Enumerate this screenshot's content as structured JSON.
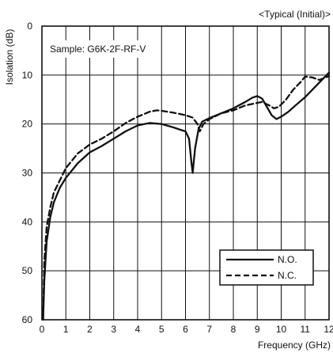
{
  "chart_data": {
    "type": "line",
    "title": "<Typical (Initial)>",
    "annotation": "Sample: G6K-2F-RF-V",
    "xlabel": "Frequency (GHz)",
    "ylabel": "Isolation (dB)",
    "xlim": [
      0,
      12
    ],
    "ylim": [
      0,
      60
    ],
    "y_inverted": true,
    "grid": true,
    "legend_position": "bottom-right",
    "xticks": [
      "0",
      "1",
      "2",
      "3",
      "4",
      "5",
      "6",
      "7",
      "8",
      "9",
      "10",
      "11",
      "12"
    ],
    "yticks": [
      "0",
      "10",
      "20",
      "30",
      "40",
      "50",
      "60"
    ],
    "series": [
      {
        "name": "N.O.",
        "style": "solid",
        "x": [
          0.05,
          0.1,
          0.2,
          0.35,
          0.5,
          0.75,
          1.0,
          1.5,
          2.0,
          2.5,
          3.0,
          3.5,
          4.0,
          4.5,
          5.0,
          5.5,
          5.8,
          6.0,
          6.15,
          6.25,
          6.3,
          6.4,
          6.55,
          6.7,
          7.0,
          7.5,
          8.0,
          8.5,
          8.8,
          9.0,
          9.2,
          9.4,
          9.6,
          9.8,
          10.0,
          10.3,
          10.6,
          11.0,
          11.5,
          12.0
        ],
        "y": [
          60,
          52,
          44,
          39,
          36,
          33,
          31,
          28,
          25.8,
          24.5,
          23,
          21.5,
          20.3,
          19.8,
          20,
          20.7,
          21.2,
          21.5,
          23,
          28,
          30,
          25,
          21,
          19.5,
          18.8,
          17.8,
          16.8,
          15.5,
          14.6,
          14.3,
          14.8,
          16.5,
          18.2,
          19,
          18.5,
          17.5,
          16.2,
          14.5,
          12,
          9.5
        ]
      },
      {
        "name": "N.C.",
        "style": "dashed",
        "x": [
          0.05,
          0.1,
          0.2,
          0.35,
          0.5,
          0.75,
          1.0,
          1.5,
          2.0,
          2.5,
          3.0,
          3.5,
          4.0,
          4.5,
          4.8,
          5.0,
          5.5,
          6.0,
          6.3,
          6.5,
          6.6,
          6.75,
          7.0,
          7.5,
          8.0,
          8.5,
          8.9,
          9.2,
          9.5,
          9.7,
          9.9,
          10.2,
          10.5,
          10.8,
          11.0,
          11.3,
          11.6,
          12.0
        ],
        "y": [
          60,
          48,
          41,
          37,
          34,
          31.5,
          29,
          26,
          24.2,
          23,
          21.5,
          19.8,
          18.5,
          17.5,
          17.2,
          17.3,
          17.7,
          18.2,
          18.7,
          20,
          21.5,
          20,
          19,
          17.8,
          17.2,
          16.2,
          15.8,
          15.5,
          16.2,
          16.8,
          16.5,
          15,
          13,
          11.5,
          10.3,
          10.5,
          11,
          10.2
        ]
      }
    ]
  }
}
